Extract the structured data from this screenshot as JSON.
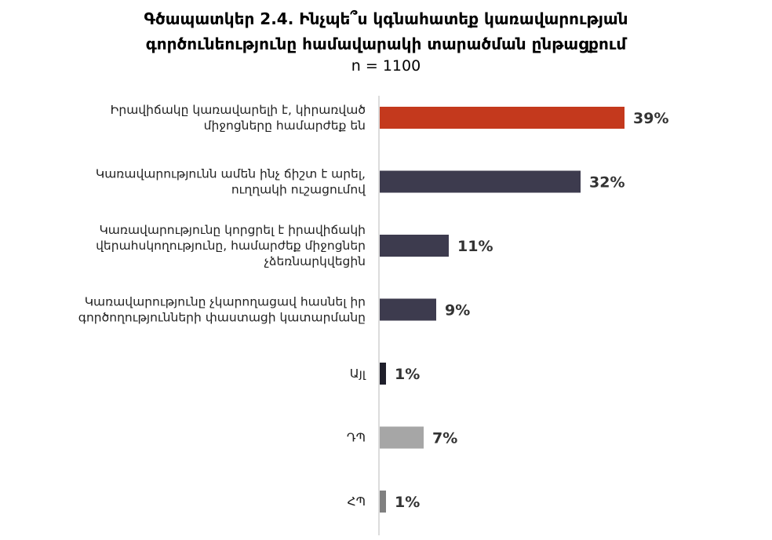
{
  "chart_data": {
    "type": "bar",
    "orientation": "horizontal",
    "title_line1": "Գծապատկեր 2.4. Ինչպե՞ս կգնահատեք կառավարության",
    "title_line2": "գործունեությունը համավարակի տարածման ընթացքում",
    "subtitle": "n = 1100",
    "categories": [
      [
        "Իրավիճակը կառավարելի է, կիրառված",
        "միջոցները համարժեք են"
      ],
      [
        "Կառավարությունն ամեն ինչ ճիշտ է արել,",
        "ուղղակի ուշացումով"
      ],
      [
        "Կառավարությունը կորցրել է իրավիճակի",
        "վերահսկողությունը, համարժեք միջոցներ",
        "չձեռնարկվեցին"
      ],
      [
        "Կառավարությունը չկարողացավ հասնել իր",
        "գործողությունների փաստացի կատարմանը"
      ],
      [
        "Այլ"
      ],
      [
        "ԴՊ"
      ],
      [
        "ՀՊ"
      ]
    ],
    "values": [
      39,
      32,
      11,
      9,
      1,
      7,
      1
    ],
    "value_labels": [
      "39%",
      "32%",
      "11%",
      "9%",
      "1%",
      "7%",
      "1%"
    ],
    "colors": [
      "#c4391d",
      "#3d3b4e",
      "#3d3b4e",
      "#3d3b4e",
      "#1f1f2b",
      "#a6a6a6",
      "#808080"
    ],
    "xlim": [
      0,
      45
    ],
    "grid": false,
    "legend": "none"
  }
}
